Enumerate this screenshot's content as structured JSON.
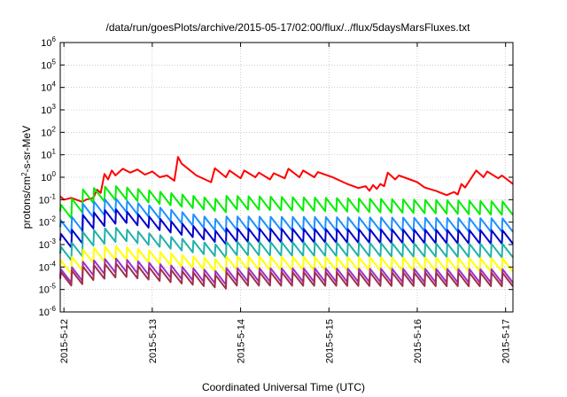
{
  "chart_data": {
    "type": "line",
    "title": "/data/run/goesPlots/archive/2015-05-17/02:00/flux/../flux/5daysMarsFluxes.txt",
    "xlabel": "Coordinated Universal Time (UTC)",
    "ylabel": {
      "prefix": "protons/cm",
      "sup": "2",
      "suffix": "-s-sr-MeV"
    },
    "yscale": "log",
    "ylim": [
      1e-06,
      1000000.0
    ],
    "y_ticks": [
      {
        "exp": "-6",
        "value": 1e-06
      },
      {
        "exp": "-5",
        "value": 1e-05
      },
      {
        "exp": "-4",
        "value": 0.0001
      },
      {
        "exp": "-3",
        "value": 0.001
      },
      {
        "exp": "-2",
        "value": 0.01
      },
      {
        "exp": "-1",
        "value": 0.1
      },
      {
        "exp": "0",
        "value": 1
      },
      {
        "exp": "1",
        "value": 10.0
      },
      {
        "exp": "2",
        "value": 100.0
      },
      {
        "exp": "3",
        "value": 1000.0
      },
      {
        "exp": "4",
        "value": 10000.0
      },
      {
        "exp": "5",
        "value": 100000.0
      },
      {
        "exp": "6",
        "value": 1000000.0
      }
    ],
    "y_tick_base": "10",
    "xlim": [
      "2015-05-11 23:00",
      "2015-05-17 02:00"
    ],
    "x_ticks": [
      {
        "label": "2015-5-12",
        "time": "2015-05-12 00:00"
      },
      {
        "label": "2015-5-13",
        "time": "2015-05-13 00:00"
      },
      {
        "label": "2015-5-14",
        "time": "2015-05-14 00:00"
      },
      {
        "label": "2015-5-15",
        "time": "2015-05-15 00:00"
      },
      {
        "label": "2015-5-16",
        "time": "2015-05-16 00:00"
      },
      {
        "label": "2015-5-17",
        "time": "2015-05-17 00:00"
      }
    ],
    "grid": true,
    "legend": "none",
    "series": [
      {
        "color": "#ff0000",
        "points": [
          [
            "2015-05-11 23:00",
            0.14
          ],
          [
            "2015-05-12 00:00",
            0.1
          ],
          [
            "2015-05-12 02:00",
            0.12
          ],
          [
            "2015-05-12 05:00",
            0.08
          ],
          [
            "2015-05-12 06:00",
            0.1
          ],
          [
            "2015-05-12 08:00",
            0.12
          ],
          [
            "2015-05-12 09:00",
            0.28
          ],
          [
            "2015-05-12 10:00",
            0.2
          ],
          [
            "2015-05-12 11:00",
            1.4
          ],
          [
            "2015-05-12 12:00",
            0.8
          ],
          [
            "2015-05-12 13:00",
            2.0
          ],
          [
            "2015-05-12 14:00",
            1.2
          ],
          [
            "2015-05-12 16:00",
            2.4
          ],
          [
            "2015-05-12 18:00",
            1.6
          ],
          [
            "2015-05-12 20:00",
            2.2
          ],
          [
            "2015-05-12 22:00",
            1.3
          ],
          [
            "2015-05-13 00:00",
            1.8
          ],
          [
            "2015-05-13 02:00",
            1.0
          ],
          [
            "2015-05-13 04:00",
            1.2
          ],
          [
            "2015-05-13 06:00",
            0.7
          ],
          [
            "2015-05-13 07:00",
            8.0
          ],
          [
            "2015-05-13 08:00",
            4.0
          ],
          [
            "2015-05-13 12:00",
            1.2
          ],
          [
            "2015-05-13 16:00",
            0.6
          ],
          [
            "2015-05-13 17:00",
            2.5
          ],
          [
            "2015-05-13 20:00",
            1.0
          ],
          [
            "2015-05-13 21:00",
            2.0
          ],
          [
            "2015-05-14 00:00",
            0.9
          ],
          [
            "2015-05-14 01:00",
            2.0
          ],
          [
            "2015-05-14 04:00",
            1.0
          ],
          [
            "2015-05-14 05:00",
            1.6
          ],
          [
            "2015-05-14 08:00",
            0.8
          ],
          [
            "2015-05-14 09:00",
            1.5
          ],
          [
            "2015-05-14 12:00",
            0.9
          ],
          [
            "2015-05-14 13:00",
            2.4
          ],
          [
            "2015-05-14 16:00",
            1.0
          ],
          [
            "2015-05-14 17:00",
            2.0
          ],
          [
            "2015-05-14 20:00",
            1.0
          ],
          [
            "2015-05-14 21:00",
            1.7
          ],
          [
            "2015-05-15 01:00",
            1.0
          ],
          [
            "2015-05-15 05:00",
            0.5
          ],
          [
            "2015-05-15 08:00",
            0.33
          ],
          [
            "2015-05-15 10:00",
            0.4
          ],
          [
            "2015-05-15 11:00",
            0.25
          ],
          [
            "2015-05-15 12:00",
            0.45
          ],
          [
            "2015-05-15 13:00",
            0.3
          ],
          [
            "2015-05-15 14:00",
            0.5
          ],
          [
            "2015-05-15 15:00",
            0.4
          ],
          [
            "2015-05-15 16:00",
            1.6
          ],
          [
            "2015-05-15 18:00",
            0.8
          ],
          [
            "2015-05-15 19:00",
            1.2
          ],
          [
            "2015-05-15 22:00",
            0.8
          ],
          [
            "2015-05-16 00:00",
            0.6
          ],
          [
            "2015-05-16 02:00",
            0.35
          ],
          [
            "2015-05-16 05:00",
            0.25
          ],
          [
            "2015-05-16 08:00",
            0.16
          ],
          [
            "2015-05-16 10:00",
            0.22
          ],
          [
            "2015-05-16 11:00",
            0.17
          ],
          [
            "2015-05-16 12:00",
            0.5
          ],
          [
            "2015-05-16 13:00",
            0.35
          ],
          [
            "2015-05-16 16:00",
            2.0
          ],
          [
            "2015-05-16 18:00",
            1.0
          ],
          [
            "2015-05-16 19:00",
            1.8
          ],
          [
            "2015-05-16 22:00",
            0.9
          ],
          [
            "2015-05-16 23:00",
            1.2
          ],
          [
            "2015-05-17 02:00",
            0.5
          ]
        ]
      },
      {
        "color": "#00ee00",
        "base": 0.1,
        "start": 0.03,
        "burst_peak": 0.42,
        "end": 0.013
      },
      {
        "color": "#1e90ff",
        "base": 0.012,
        "start": 0.006,
        "burst_peak": 0.12,
        "end": 0.006
      },
      {
        "color": "#0000cc",
        "base": 0.0035,
        "start": 0.0015,
        "burst_peak": 0.04,
        "end": 0.0018
      },
      {
        "color": "#20b2aa",
        "base": 0.0009,
        "start": 0.0004,
        "burst_peak": 0.006,
        "end": 0.0004
      },
      {
        "color": "#ffff00",
        "base": 0.0002,
        "start": 0.0001,
        "burst_peak": 0.0009,
        "end": 0.0001
      },
      {
        "color": "#9932cc",
        "base": 6e-05,
        "start": 4e-05,
        "burst_peak": 0.00025,
        "end": 4e-05
      },
      {
        "color": "#a0304a",
        "base": 4e-05,
        "start": 3e-05,
        "burst_peak": 0.00015,
        "end": 3e-05
      }
    ]
  }
}
